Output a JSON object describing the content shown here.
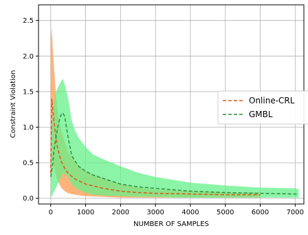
{
  "chart_data": {
    "type": "line",
    "title": "",
    "xlabel": "NUMBER OF SAMPLES",
    "ylabel": "Constraint Violation",
    "xlim": [
      -350,
      7250
    ],
    "ylim": [
      -0.08,
      2.72
    ],
    "xticks": [
      0,
      1000,
      2000,
      3000,
      4000,
      5000,
      6000,
      7000
    ],
    "yticks": [
      0.0,
      0.5,
      1.0,
      1.5,
      2.0,
      2.5
    ],
    "xtick_labels": [
      "0",
      "1000",
      "2000",
      "3000",
      "4000",
      "5000",
      "6000",
      "7000"
    ],
    "ytick_labels": [
      "0.0",
      "0.5",
      "1.0",
      "1.5",
      "2.0",
      "2.5"
    ],
    "grid": true,
    "legend": "center-right",
    "series": [
      {
        "name": "Online-CRL",
        "color": "#d95319",
        "band_color": "#ff9a4d",
        "linestyle": "dashed",
        "x": [
          0,
          30,
          60,
          100,
          150,
          200,
          300,
          400,
          500,
          700,
          1000,
          1500,
          2000,
          2500,
          3000,
          4000,
          5000,
          6000
        ],
        "y": [
          0.35,
          1.4,
          1.25,
          1.05,
          0.85,
          0.7,
          0.52,
          0.42,
          0.35,
          0.27,
          0.2,
          0.14,
          0.1,
          0.08,
          0.07,
          0.06,
          0.05,
          0.05
        ],
        "lower": [
          0.0,
          0.55,
          0.5,
          0.42,
          0.32,
          0.25,
          0.15,
          0.1,
          0.07,
          0.05,
          0.03,
          0.02,
          0.01,
          0.01,
          0.01,
          0.01,
          0.01,
          0.01
        ],
        "upper": [
          2.2,
          2.4,
          2.1,
          1.8,
          1.45,
          1.2,
          0.95,
          0.8,
          0.65,
          0.5,
          0.38,
          0.28,
          0.2,
          0.15,
          0.12,
          0.1,
          0.08,
          0.08
        ]
      },
      {
        "name": "GMBL",
        "color": "#2e8b3a",
        "band_color": "#66f08a",
        "linestyle": "dashed",
        "x": [
          0,
          50,
          100,
          150,
          200,
          250,
          300,
          350,
          400,
          500,
          600,
          700,
          800,
          1000,
          1200,
          1500,
          2000,
          2500,
          3000,
          3500,
          4000,
          5000,
          6000,
          7000,
          7100
        ],
        "y": [
          0.3,
          0.45,
          0.7,
          0.85,
          1.0,
          1.1,
          1.18,
          1.2,
          1.15,
          0.85,
          0.6,
          0.52,
          0.45,
          0.38,
          0.33,
          0.28,
          0.2,
          0.16,
          0.14,
          0.12,
          0.1,
          0.08,
          0.07,
          0.06,
          0.06
        ],
        "lower": [
          0.0,
          0.05,
          0.1,
          0.15,
          0.2,
          0.25,
          0.3,
          0.35,
          0.35,
          0.3,
          0.2,
          0.15,
          0.12,
          0.08,
          0.05,
          0.04,
          0.03,
          0.02,
          0.02,
          0.01,
          0.01,
          0.01,
          0.01,
          0.01,
          0.01
        ],
        "upper": [
          0.9,
          1.1,
          1.35,
          1.5,
          1.55,
          1.6,
          1.65,
          1.68,
          1.6,
          1.4,
          1.1,
          0.95,
          0.85,
          0.72,
          0.62,
          0.55,
          0.45,
          0.36,
          0.3,
          0.26,
          0.22,
          0.18,
          0.15,
          0.14,
          0.13
        ]
      }
    ]
  }
}
